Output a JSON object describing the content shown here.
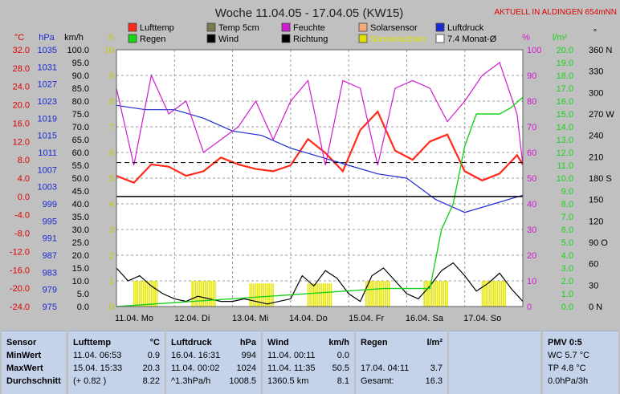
{
  "chart_data": {
    "type": "line",
    "title": "Woche 11.04.05 - 17.04.05 (KW15)",
    "location_note": "AKTUELL IN ALDINGEN 654mNN",
    "x_days": [
      "11.04. Mo",
      "12.04. Di",
      "13.04. Mi",
      "14.04. Do",
      "15.04. Fr",
      "16.04. Sa",
      "17.04. So"
    ],
    "left_axes": {
      "temp": {
        "unit": "°C",
        "min": -24,
        "max": 32,
        "ticks": [
          "32.0",
          "28.0",
          "24.0",
          "20.0",
          "16.0",
          "12.0",
          "8.0",
          "4.0",
          "0.0",
          "-4.0",
          "-8.0",
          "-12.0",
          "-16.0",
          "-20.0",
          "-24.0"
        ]
      },
      "pressure": {
        "unit": "hPa",
        "ticks": [
          "1035",
          "1031",
          "1027",
          "1023",
          "1019",
          "1015",
          "1011",
          "1007",
          "1003",
          "999",
          "995",
          "991",
          "987",
          "983",
          "979",
          "975"
        ]
      },
      "wind": {
        "unit": "km/h",
        "ticks": [
          "100.0",
          "95.0",
          "90.0",
          "85.0",
          "80.0",
          "75.0",
          "70.0",
          "65.0",
          "60.0",
          "55.0",
          "50.0",
          "45.0",
          "40.0",
          "35.0",
          "30.0",
          "25.0",
          "20.0",
          "15.0",
          "10.0",
          "5.0",
          "0.0"
        ]
      },
      "sun": {
        "unit": "h",
        "ticks": [
          "10",
          "9",
          "8",
          "7",
          "6",
          "5",
          "4",
          "3",
          "2",
          "1",
          "0"
        ]
      }
    },
    "right_axes": {
      "humidity": {
        "unit": "%",
        "ticks": [
          "100",
          "90",
          "80",
          "70",
          "60",
          "50",
          "40",
          "30",
          "20",
          "10",
          "0"
        ]
      },
      "rain": {
        "unit": "l/m²",
        "ticks": [
          "20.0",
          "19.0",
          "18.0",
          "17.0",
          "16.0",
          "15.0",
          "14.0",
          "13.0",
          "12.0",
          "11.0",
          "10.0",
          "9.0",
          "8.0",
          "7.0",
          "6.0",
          "5.0",
          "4.0",
          "3.0",
          "2.0",
          "1.0",
          "0.0"
        ]
      },
      "direction": {
        "unit": "°",
        "ticks": [
          "360 N",
          "330",
          "300",
          "270 W",
          "240",
          "210",
          "180 S",
          "150",
          "120",
          "90 O",
          "60",
          "30",
          "0 N"
        ]
      }
    },
    "legend": [
      {
        "name": "Lufttemp",
        "color": "#ff2a1a"
      },
      {
        "name": "Temp 5cm",
        "color": "#7a7a52"
      },
      {
        "name": "Feuchte",
        "color": "#d21ad2"
      },
      {
        "name": "Solarsensor",
        "color": "#f5a878"
      },
      {
        "name": "Luftdruck",
        "color": "#1a2ad2"
      },
      {
        "name": "Regen",
        "color": "#1ad21a"
      },
      {
        "name": "Wind",
        "color": "#000000"
      },
      {
        "name": "Richtung",
        "color": "#000000"
      },
      {
        "name": "Sonnenschein",
        "color": "#e0e000"
      },
      {
        "name": "7.4 Monat-Ø",
        "color": "#000000"
      }
    ],
    "grid": true,
    "series": [
      {
        "name": "Lufttemp",
        "axis": "temp",
        "x": [
          0,
          0.3,
          0.6,
          0.9,
          1.2,
          1.5,
          1.8,
          2.1,
          2.4,
          2.7,
          3.0,
          3.3,
          3.6,
          3.9,
          4.2,
          4.5,
          4.8,
          5.1,
          5.4,
          5.7,
          6.0,
          6.3,
          6.6,
          6.9,
          7.0
        ],
        "values": [
          4.5,
          3.0,
          7.0,
          6.5,
          4.5,
          5.5,
          8.5,
          7.0,
          6.0,
          5.5,
          6.8,
          12.5,
          9.5,
          5.5,
          14.5,
          18.5,
          10.0,
          8.0,
          12.0,
          13.5,
          5.5,
          3.5,
          5.0,
          9.0,
          7.0
        ]
      },
      {
        "name": "Luftdruck",
        "axis": "pressure",
        "x": [
          0,
          0.5,
          1.0,
          1.5,
          2.0,
          2.5,
          3.0,
          3.5,
          4.0,
          4.5,
          5.0,
          5.5,
          6.0,
          6.5,
          7.0
        ],
        "values": [
          1022,
          1021,
          1021,
          1019,
          1016,
          1015,
          1012,
          1010,
          1008,
          1006,
          1005,
          1000,
          997,
          999,
          1001
        ]
      },
      {
        "name": "Feuchte",
        "axis": "humidity",
        "x": [
          0,
          0.3,
          0.6,
          0.9,
          1.2,
          1.5,
          1.8,
          2.1,
          2.4,
          2.7,
          3.0,
          3.3,
          3.6,
          3.9,
          4.2,
          4.5,
          4.8,
          5.1,
          5.4,
          5.7,
          6.0,
          6.3,
          6.6,
          6.9,
          7.0
        ],
        "values": [
          85,
          55,
          90,
          75,
          80,
          60,
          65,
          70,
          80,
          65,
          80,
          88,
          55,
          88,
          85,
          55,
          85,
          88,
          85,
          72,
          80,
          90,
          95,
          75,
          55
        ]
      },
      {
        "name": "Wind",
        "axis": "wind",
        "x": [
          0,
          0.2,
          0.4,
          0.6,
          0.8,
          1.0,
          1.2,
          1.4,
          1.6,
          1.8,
          2.0,
          2.2,
          2.4,
          2.6,
          2.8,
          3.0,
          3.2,
          3.4,
          3.6,
          3.8,
          4.0,
          4.2,
          4.4,
          4.6,
          4.8,
          5.0,
          5.2,
          5.4,
          5.6,
          5.8,
          6.0,
          6.2,
          6.4,
          6.6,
          6.8,
          7.0
        ],
        "values": [
          15,
          10,
          12,
          8,
          5,
          3,
          2,
          4,
          3,
          2,
          2,
          3,
          2,
          1,
          2,
          3,
          12,
          8,
          14,
          11,
          5,
          2,
          12,
          15,
          10,
          5,
          3,
          8,
          14,
          17,
          12,
          6,
          9,
          13,
          7,
          2
        ]
      },
      {
        "name": "Regen",
        "axis": "rain",
        "x": [
          0,
          4.6,
          5.0,
          5.4,
          5.6,
          5.8,
          6.0,
          6.2,
          6.4,
          6.6,
          6.8,
          7.0
        ],
        "values": [
          0,
          1.4,
          1.4,
          1.4,
          6.0,
          8.0,
          12.5,
          15.0,
          15.0,
          15.0,
          15.5,
          16.3
        ]
      },
      {
        "name": "7.4 Monat-Ø",
        "axis": "temp",
        "x": [
          0,
          7.0
        ],
        "values": [
          7.4,
          7.4
        ]
      }
    ],
    "sunshine": [
      {
        "day": 0,
        "hours": 1.0
      },
      {
        "day": 1,
        "hours": 1.0
      },
      {
        "day": 2,
        "hours": 0.9
      },
      {
        "day": 3,
        "hours": 0.9
      },
      {
        "day": 4,
        "hours": 1.0
      },
      {
        "day": 5,
        "hours": 1.0
      },
      {
        "day": 6,
        "hours": 1.0
      }
    ]
  },
  "stats": {
    "sensor": {
      "title": "Sensor",
      "rows": [
        "MinWert",
        "MaxWert",
        "Durchschnitt"
      ]
    },
    "lufttemp": {
      "title": "Lufttemp",
      "unit": "°C",
      "rows": [
        [
          "11.04.  06:53",
          "0.9"
        ],
        [
          "15.04.  15:33",
          "20.3"
        ],
        [
          "(+ 0.82 )",
          "8.22"
        ]
      ]
    },
    "luftdruck": {
      "title": "Luftdruck",
      "unit": "hPa",
      "rows": [
        [
          "16.04.  16:31",
          "994"
        ],
        [
          "11.04.  00:02",
          "1024"
        ],
        [
          "^1.3hPa/h",
          "1008.5"
        ]
      ]
    },
    "wind": {
      "title": "Wind",
      "unit": "km/h",
      "rows": [
        [
          "11.04.  00:11",
          "0.0"
        ],
        [
          "11.04.  11:35",
          "50.5"
        ],
        [
          "1360.5 km",
          "8.1"
        ]
      ]
    },
    "regen": {
      "title": "Regen",
      "unit": "l/m²",
      "rows": [
        [
          "17.04.  04:11",
          "3.7"
        ],
        [
          "Gesamt:",
          "16.3"
        ]
      ]
    },
    "pmv": {
      "title": "PMV 0:5",
      "rows": [
        "WC 5.7 °C",
        "TP 4.8 °C",
        "0.0hPa/3h"
      ]
    }
  }
}
